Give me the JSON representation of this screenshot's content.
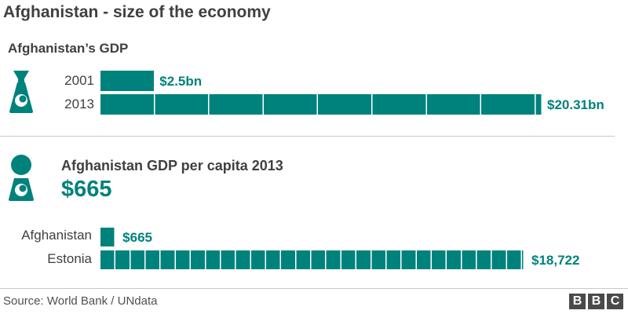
{
  "title": "Afghanistan - size of the economy",
  "source": "Source: World Bank / UNdata",
  "logo": [
    "B",
    "B",
    "C"
  ],
  "colors": {
    "accent": "#00827c",
    "text": "#404040"
  },
  "chart_data": [
    {
      "type": "bar",
      "orientation": "horizontal",
      "title": "Afghanistan’s GDP",
      "categories": [
        "2001",
        "2013"
      ],
      "values": [
        2.5,
        20.31
      ],
      "value_labels": [
        "$2.5bn",
        "$20.31bn"
      ],
      "unit": "$bn",
      "segment_size": 2.5,
      "xlim": [
        0,
        20.31
      ]
    },
    {
      "type": "bar",
      "orientation": "horizontal",
      "title": "Afghanistan GDP per capita 2013",
      "headline": "$665",
      "categories": [
        "Afghanistan",
        "Estonia"
      ],
      "values": [
        665,
        18722
      ],
      "value_labels": [
        "$665",
        "$18,722"
      ],
      "unit": "$",
      "segment_size": 665,
      "xlim": [
        0,
        18722
      ]
    }
  ]
}
